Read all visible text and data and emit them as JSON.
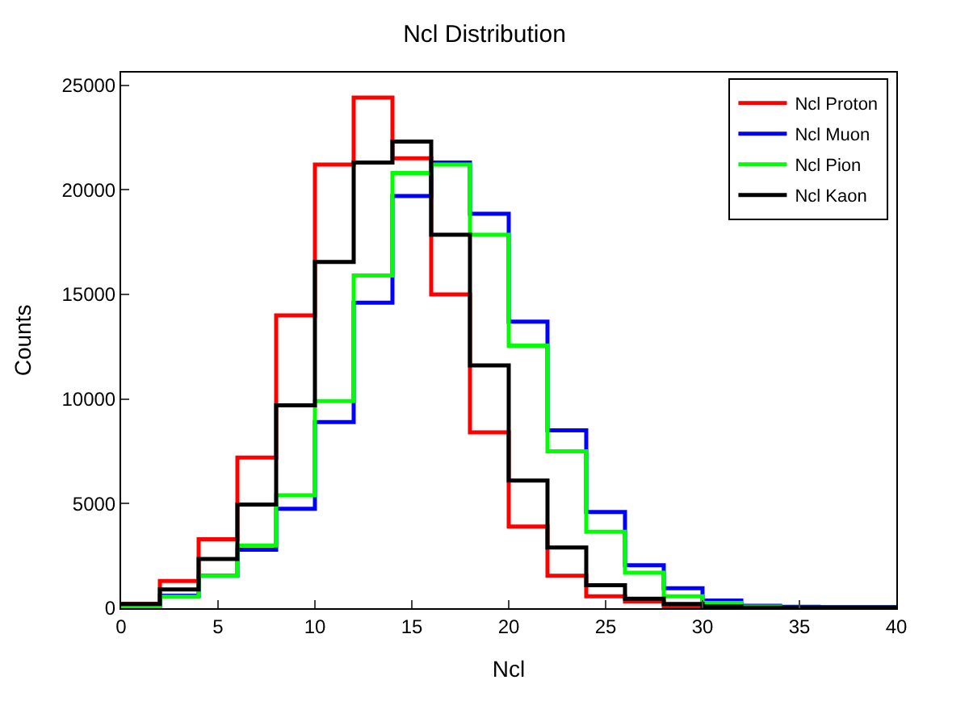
{
  "chart_data": {
    "type": "histogram",
    "title": "Ncl Distribution",
    "xlabel": "Ncl",
    "ylabel": "Counts",
    "bins": [
      0,
      2,
      4,
      6,
      8,
      10,
      12,
      14,
      16,
      18,
      20,
      22,
      24,
      26,
      28,
      30,
      32,
      34,
      36,
      38,
      40
    ],
    "series": [
      {
        "name": "Ncl Proton",
        "color": "#ff0000",
        "values": [
          200,
          1300,
          3300,
          7200,
          14000,
          21200,
          24400,
          21500,
          15000,
          8400,
          3900,
          1550,
          570,
          320,
          100,
          30,
          20,
          20,
          50,
          50
        ]
      },
      {
        "name": "Ncl Muon",
        "color": "#0000ff",
        "values": [
          50,
          600,
          1550,
          2800,
          4750,
          8900,
          14600,
          19700,
          21300,
          18850,
          13700,
          8500,
          4600,
          2050,
          950,
          370,
          120,
          70,
          50,
          50
        ]
      },
      {
        "name": "Ncl Pion",
        "color": "#00ff00",
        "values": [
          50,
          550,
          1550,
          3000,
          5400,
          9900,
          15900,
          20800,
          21200,
          17850,
          12550,
          7500,
          3650,
          1700,
          570,
          250,
          80,
          30,
          30,
          30
        ]
      },
      {
        "name": "Ncl Kaon",
        "color": "#000000",
        "values": [
          200,
          900,
          2350,
          4950,
          9700,
          16550,
          21300,
          22300,
          17850,
          11600,
          6100,
          2900,
          1100,
          450,
          200,
          100,
          30,
          30,
          30,
          30
        ]
      }
    ],
    "xlim": [
      0,
      40
    ],
    "ylim": [
      0,
      25600
    ],
    "xticks": [
      0,
      5,
      10,
      15,
      20,
      25,
      30,
      35,
      40
    ],
    "yticks": [
      0,
      5000,
      10000,
      15000,
      20000,
      25000
    ],
    "legend": "top right"
  }
}
